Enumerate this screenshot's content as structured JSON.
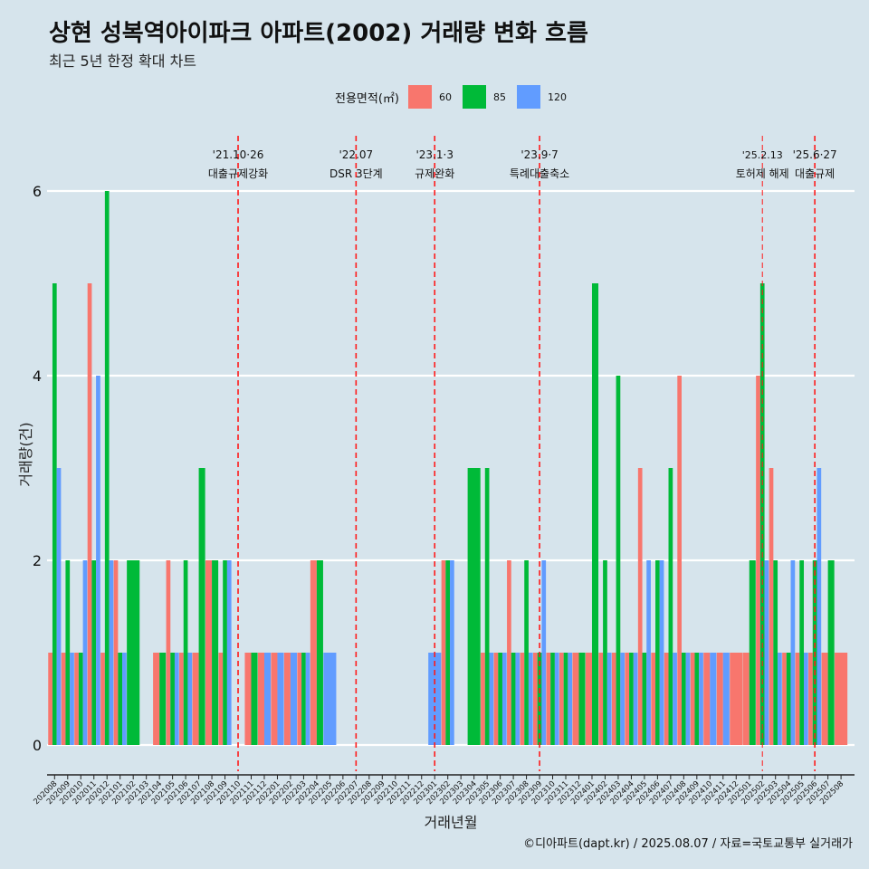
{
  "header": {
    "title": "상현 성복역아이파크 아파트(2002) 거래량 변화 흐름",
    "subtitle": "최근 5년 한정 확대 차트"
  },
  "legend": {
    "title": "전용면적(㎡)",
    "items": [
      {
        "label": "60",
        "color": "#f8766d"
      },
      {
        "label": "85",
        "color": "#00ba38"
      },
      {
        "label": "120",
        "color": "#619cff"
      }
    ]
  },
  "caption": "©디아파트(dapt.kr) / 2025.08.07 / 자료=국토교통부 실거래가",
  "chart_data": {
    "type": "bar",
    "xlabel": "거래년월",
    "ylabel": "거래량(건)",
    "ylim": [
      0,
      6
    ],
    "yticks": [
      0,
      2,
      4,
      6
    ],
    "categories": [
      "202008",
      "202009",
      "202010",
      "202011",
      "202012",
      "202101",
      "202102",
      "202103",
      "202104",
      "202105",
      "202106",
      "202107",
      "202108",
      "202109",
      "202110",
      "202111",
      "202112",
      "202201",
      "202202",
      "202203",
      "202204",
      "202205",
      "202206",
      "202207",
      "202208",
      "202209",
      "202210",
      "202211",
      "202212",
      "202301",
      "202302",
      "202303",
      "202304",
      "202305",
      "202306",
      "202307",
      "202308",
      "202309",
      "202310",
      "202311",
      "202312",
      "202401",
      "202402",
      "202403",
      "202404",
      "202405",
      "202406",
      "202407",
      "202408",
      "202409",
      "202410",
      "202411",
      "202412",
      "202501",
      "202502",
      "202503",
      "202504",
      "202505",
      "202506",
      "202507",
      "202508"
    ],
    "series": [
      {
        "name": "60",
        "color": "#f8766d",
        "values": [
          1,
          1,
          1,
          5,
          1,
          2,
          0,
          0,
          1,
          2,
          1,
          1,
          2,
          1,
          0,
          1,
          1,
          1,
          1,
          1,
          2,
          0,
          0,
          0,
          0,
          0,
          0,
          0,
          0,
          0,
          2,
          0,
          0,
          1,
          1,
          2,
          1,
          1,
          1,
          1,
          1,
          1,
          1,
          1,
          1,
          3,
          1,
          1,
          4,
          1,
          1,
          1,
          1,
          1,
          4,
          3,
          1,
          1,
          1,
          1,
          1
        ]
      },
      {
        "name": "85",
        "color": "#00ba38",
        "values": [
          5,
          2,
          1,
          2,
          6,
          1,
          2,
          0,
          1,
          1,
          2,
          3,
          2,
          2,
          0,
          1,
          0,
          0,
          0,
          1,
          2,
          0,
          0,
          0,
          0,
          0,
          0,
          0,
          0,
          0,
          2,
          0,
          3,
          3,
          1,
          1,
          2,
          1,
          1,
          1,
          1,
          5,
          2,
          4,
          1,
          1,
          2,
          3,
          1,
          1,
          0,
          0,
          0,
          2,
          5,
          2,
          1,
          2,
          2,
          2,
          0
        ]
      },
      {
        "name": "120",
        "color": "#619cff",
        "values": [
          3,
          1,
          2,
          4,
          2,
          1,
          0,
          0,
          0,
          1,
          1,
          0,
          0,
          2,
          0,
          0,
          1,
          1,
          1,
          1,
          0,
          1,
          0,
          0,
          0,
          0,
          0,
          0,
          0,
          1,
          2,
          0,
          0,
          1,
          1,
          1,
          1,
          2,
          1,
          1,
          0,
          0,
          1,
          1,
          1,
          2,
          2,
          1,
          1,
          1,
          1,
          1,
          0,
          0,
          2,
          1,
          2,
          1,
          3,
          0,
          0
        ]
      }
    ],
    "annotations": [
      {
        "category": "202110",
        "date": "'21.10·26",
        "label": "대출규제강화"
      },
      {
        "category": "202207",
        "date": "'22.07",
        "label": "DSR 3단계"
      },
      {
        "category": "202301",
        "date": "'23.1·3",
        "label": "규제완화"
      },
      {
        "category": "202309",
        "date": "'23.9·7",
        "label": "특례대출축소"
      },
      {
        "category": "202502",
        "date": "'25.2.13",
        "label": "토허제 해제"
      },
      {
        "category": "202506",
        "date": "'25.6·27",
        "label": "대출규제"
      }
    ]
  }
}
